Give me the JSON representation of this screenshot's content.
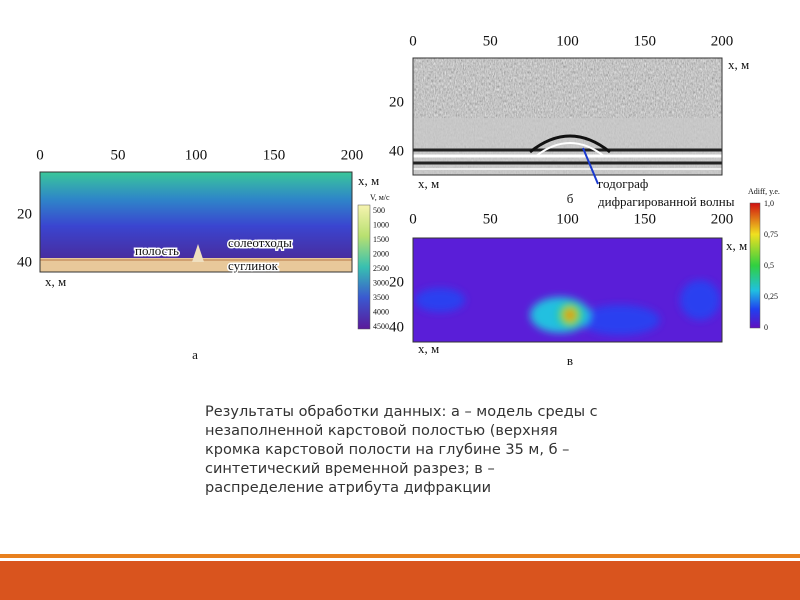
{
  "figure_a": {
    "x_ticks": [
      "0",
      "50",
      "100",
      "150",
      "200"
    ],
    "y_ticks": [
      "20",
      "40"
    ],
    "x_axis_label_top": "x, м",
    "x_axis_label_bottom": "x, м",
    "labels": [
      "полость",
      "солеотходы",
      "суглинок"
    ],
    "colorbar_title": "V, м/с",
    "colorbar_ticks": [
      "500",
      "1000",
      "1500",
      "2000",
      "2500",
      "3000",
      "3500",
      "4000",
      "4500"
    ],
    "caption": "а"
  },
  "figure_b": {
    "x_ticks": [
      "0",
      "50",
      "100",
      "150",
      "200"
    ],
    "y_ticks": [
      "20",
      "40"
    ],
    "x_axis_label_top": "x, м",
    "x_axis_label_bottom": "x, м",
    "annotation": [
      "годограф",
      "дифрагированной волны"
    ],
    "caption": "б"
  },
  "figure_v": {
    "x_ticks": [
      "0",
      "50",
      "100",
      "150",
      "200"
    ],
    "y_ticks": [
      "20",
      "40"
    ],
    "x_axis_label_top": "x, м",
    "x_axis_label_bottom": "x, м",
    "colorbar_title": "Adiff, у.е.",
    "colorbar_ticks": [
      "1,0",
      "0,75",
      "0,5",
      "0,25",
      "0"
    ],
    "caption": "в"
  },
  "caption": {
    "lines": [
      "Результаты обработки данных: а – модель среды с",
      "незаполненной карстовой полостью (верхняя",
      "кромка карстовой полости на глубине 35 м, б –",
      "синтетический временной разрез; в –",
      "распределение атрибута дифракции"
    ]
  }
}
